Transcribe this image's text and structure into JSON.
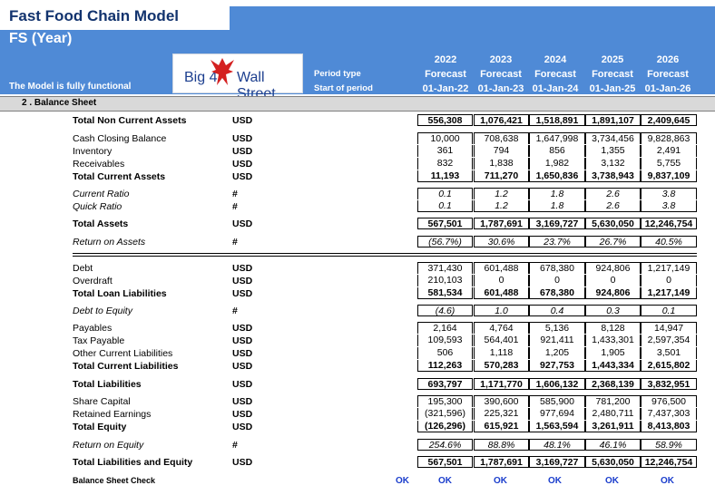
{
  "header": {
    "title": "Fast Food Chain Model",
    "subtitle": "FS (Year)",
    "status_text": "The Model is fully functional",
    "logo_text_left": "Big 4",
    "logo_text_right": "Wall Street",
    "period_type_label": "Period type",
    "start_label": "Start of period",
    "columns": [
      {
        "year": "2022",
        "type": "Forecast",
        "start": "01-Jan-22"
      },
      {
        "year": "2023",
        "type": "Forecast",
        "start": "01-Jan-23"
      },
      {
        "year": "2024",
        "type": "Forecast",
        "start": "01-Jan-24"
      },
      {
        "year": "2025",
        "type": "Forecast",
        "start": "01-Jan-25"
      },
      {
        "year": "2026",
        "type": "Forecast",
        "start": "01-Jan-26"
      }
    ],
    "colors": {
      "header_blue": "#4f8ad6",
      "title_navy": "#12336e",
      "ok_blue": "#1a3dcc"
    }
  },
  "section_title": "2 .  Balance Sheet",
  "rows": [
    {
      "label": "Total Non Current Assets",
      "unit": "USD",
      "values": [
        "556,308",
        "1,076,421",
        "1,518,891",
        "1,891,107",
        "2,409,645"
      ],
      "style": "bold"
    },
    {
      "label": "Cash Closing Balance",
      "unit": "USD",
      "values": [
        "10,000",
        "708,638",
        "1,647,998",
        "3,734,456",
        "9,828,863"
      ],
      "style": ""
    },
    {
      "label": "Inventory",
      "unit": "USD",
      "values": [
        "361",
        "794",
        "856",
        "1,355",
        "2,491"
      ],
      "style": ""
    },
    {
      "label": "Receivables",
      "unit": "USD",
      "values": [
        "832",
        "1,838",
        "1,982",
        "3,132",
        "5,755"
      ],
      "style": ""
    },
    {
      "label": "Total Current Assets",
      "unit": "USD",
      "values": [
        "11,193",
        "711,270",
        "1,650,836",
        "3,738,943",
        "9,837,109"
      ],
      "style": "bold"
    },
    {
      "label": "Current Ratio",
      "unit": "#",
      "values": [
        "0.1",
        "1.2",
        "1.8",
        "2.6",
        "3.8"
      ],
      "style": "ital"
    },
    {
      "label": "Quick Ratio",
      "unit": "#",
      "values": [
        "0.1",
        "1.2",
        "1.8",
        "2.6",
        "3.8"
      ],
      "style": "ital"
    },
    {
      "label": "Total Assets",
      "unit": "USD",
      "values": [
        "567,501",
        "1,787,691",
        "3,169,727",
        "5,630,050",
        "12,246,754"
      ],
      "style": "bold"
    },
    {
      "label": "Return on Assets",
      "unit": "#",
      "values": [
        "(56.7%)",
        "30.6%",
        "23.7%",
        "26.7%",
        "40.5%"
      ],
      "style": "ital"
    },
    {
      "label": "Debt",
      "unit": "USD",
      "values": [
        "371,430",
        "601,488",
        "678,380",
        "924,806",
        "1,217,149"
      ],
      "style": ""
    },
    {
      "label": "Overdraft",
      "unit": "USD",
      "values": [
        "210,103",
        "0",
        "0",
        "0",
        "0"
      ],
      "style": ""
    },
    {
      "label": "Total Loan Liabilities",
      "unit": "USD",
      "values": [
        "581,534",
        "601,488",
        "678,380",
        "924,806",
        "1,217,149"
      ],
      "style": "bold"
    },
    {
      "label": "Debt to Equity",
      "unit": "#",
      "values": [
        "(4.6)",
        "1.0",
        "0.4",
        "0.3",
        "0.1"
      ],
      "style": "ital"
    },
    {
      "label": "Payables",
      "unit": "USD",
      "values": [
        "2,164",
        "4,764",
        "5,136",
        "8,128",
        "14,947"
      ],
      "style": ""
    },
    {
      "label": "Tax Payable",
      "unit": "USD",
      "values": [
        "109,593",
        "564,401",
        "921,411",
        "1,433,301",
        "2,597,354"
      ],
      "style": ""
    },
    {
      "label": "Other Current Liabilities",
      "unit": "USD",
      "values": [
        "506",
        "1,118",
        "1,205",
        "1,905",
        "3,501"
      ],
      "style": ""
    },
    {
      "label": "Total Current Liabilities",
      "unit": "USD",
      "values": [
        "112,263",
        "570,283",
        "927,753",
        "1,443,334",
        "2,615,802"
      ],
      "style": "bold"
    },
    {
      "label": "Total Liabilities",
      "unit": "USD",
      "values": [
        "693,797",
        "1,171,770",
        "1,606,132",
        "2,368,139",
        "3,832,951"
      ],
      "style": "bold"
    },
    {
      "label": "Share Capital",
      "unit": "USD",
      "values": [
        "195,300",
        "390,600",
        "585,900",
        "781,200",
        "976,500"
      ],
      "style": ""
    },
    {
      "label": "Retained Earnings",
      "unit": "USD",
      "values": [
        "(321,596)",
        "225,321",
        "977,694",
        "2,480,711",
        "7,437,303"
      ],
      "style": ""
    },
    {
      "label": "Total Equity",
      "unit": "USD",
      "values": [
        "(126,296)",
        "615,921",
        "1,563,594",
        "3,261,911",
        "8,413,803"
      ],
      "style": "bold"
    },
    {
      "label": "Return on Equity",
      "unit": "#",
      "values": [
        "254.6%",
        "88.8%",
        "48.1%",
        "46.1%",
        "58.9%"
      ],
      "style": "ital"
    },
    {
      "label": "Total Liabilities and Equity",
      "unit": "USD",
      "values": [
        "567,501",
        "1,787,691",
        "3,169,727",
        "5,630,050",
        "12,246,754"
      ],
      "style": "bold"
    }
  ],
  "check": {
    "label": "Balance Sheet Check",
    "total": "OK",
    "values": [
      "OK",
      "OK",
      "OK",
      "OK",
      "OK"
    ]
  }
}
